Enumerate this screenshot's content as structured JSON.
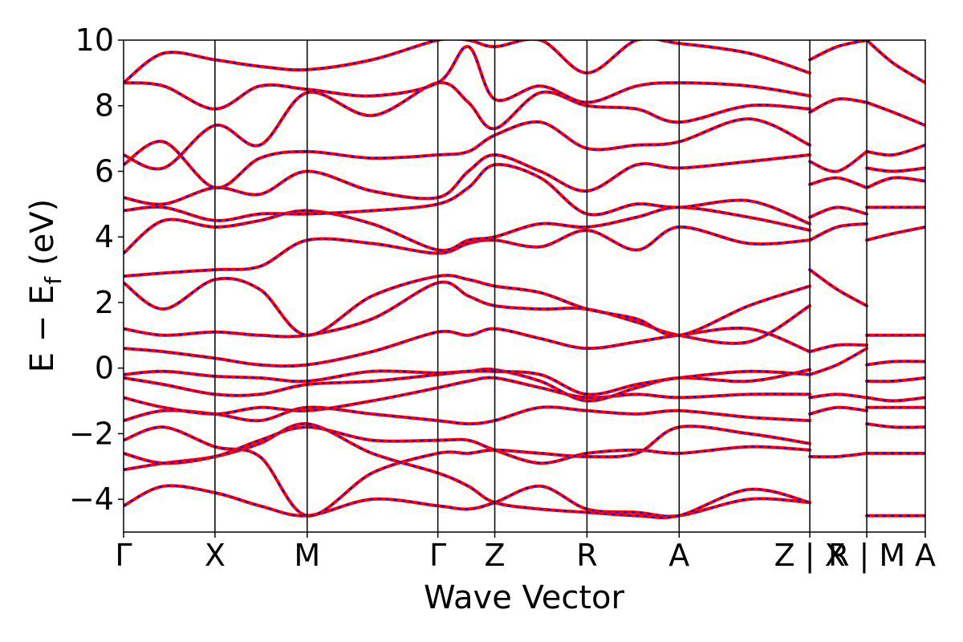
{
  "chart_data": {
    "type": "line",
    "xlabel": "Wave Vector",
    "ylabel": "E − E",
    "ylabel_sub": "f",
    "ylabel_unit": "(eV)",
    "ylim": [
      -5,
      10
    ],
    "yticks": [
      -4,
      -2,
      0,
      2,
      4,
      6,
      8,
      10
    ],
    "ytick_labels": [
      "−4",
      "−2",
      "0",
      "2",
      "4",
      "6",
      "8",
      "10"
    ],
    "x_range": [
      0,
      1
    ],
    "kpoints": [
      {
        "label": "Γ",
        "x": 0.0
      },
      {
        "label": "X",
        "x": 0.114
      },
      {
        "label": "M",
        "x": 0.229
      },
      {
        "label": "Γ",
        "x": 0.392
      },
      {
        "label": "Z",
        "x": 0.463
      },
      {
        "label": "R",
        "x": 0.578
      },
      {
        "label": "A",
        "x": 0.693
      },
      {
        "label": "Z | X",
        "x": 0.856
      },
      {
        "label": "R | M",
        "x": 0.927
      },
      {
        "label": "A",
        "x": 1.0
      }
    ],
    "series": [
      {
        "color": "#ff0000",
        "style": "solid"
      },
      {
        "color": "#0000ff",
        "style": "dashed"
      }
    ],
    "bands": [
      {
        "x": [
          0.0,
          0.05,
          0.114,
          0.17,
          0.229,
          0.31,
          0.392,
          0.43,
          0.463,
          0.52,
          0.578,
          0.64,
          0.693,
          0.78,
          0.856
        ],
        "y": [
          -4.2,
          -3.6,
          -3.8,
          -4.2,
          -4.5,
          -4.0,
          -4.2,
          -4.3,
          -4.1,
          -3.6,
          -4.3,
          -4.4,
          -4.5,
          -4.0,
          -4.1
        ]
      },
      {
        "x": [
          0.0,
          0.05,
          0.114,
          0.17,
          0.229,
          0.31,
          0.392,
          0.43,
          0.463,
          0.52,
          0.578,
          0.64,
          0.693,
          0.78,
          0.856
        ],
        "y": [
          -3.1,
          -2.9,
          -2.7,
          -2.3,
          -1.7,
          -2.6,
          -3.2,
          -3.6,
          -4.1,
          -4.3,
          -4.4,
          -4.5,
          -4.5,
          -3.7,
          -4.1
        ]
      },
      {
        "x": [
          0.0,
          0.05,
          0.114,
          0.17,
          0.229,
          0.31,
          0.392,
          0.43,
          0.463,
          0.52,
          0.578,
          0.64,
          0.693,
          0.78,
          0.856
        ],
        "y": [
          -2.6,
          -2.9,
          -2.7,
          -2.2,
          -1.8,
          -2.2,
          -2.2,
          -2.2,
          -2.5,
          -2.9,
          -2.6,
          -2.5,
          -2.6,
          -2.4,
          -2.5
        ]
      },
      {
        "x": [
          0.0,
          0.05,
          0.114,
          0.17,
          0.229,
          0.31,
          0.392,
          0.43,
          0.463,
          0.52,
          0.578,
          0.64,
          0.693,
          0.78,
          0.856
        ],
        "y": [
          -2.2,
          -1.8,
          -2.4,
          -2.7,
          -4.5,
          -3.2,
          -2.6,
          -2.6,
          -2.5,
          -2.6,
          -2.7,
          -2.6,
          -1.8,
          -2.0,
          -2.3
        ]
      },
      {
        "x": [
          0.0,
          0.05,
          0.114,
          0.17,
          0.229,
          0.31,
          0.392,
          0.43,
          0.463,
          0.52,
          0.578,
          0.64,
          0.693,
          0.78,
          0.856
        ],
        "y": [
          -1.6,
          -1.3,
          -1.4,
          -1.6,
          -1.2,
          -1.4,
          -1.6,
          -1.7,
          -1.6,
          -1.2,
          -1.3,
          -1.4,
          -1.3,
          -1.5,
          -1.6
        ]
      },
      {
        "x": [
          0.0,
          0.05,
          0.114,
          0.17,
          0.229,
          0.31,
          0.392,
          0.43,
          0.463,
          0.52,
          0.578,
          0.64,
          0.693,
          0.78,
          0.856
        ],
        "y": [
          -0.9,
          -1.2,
          -1.4,
          -1.2,
          -1.3,
          -1.0,
          -0.6,
          -0.4,
          -0.3,
          -0.6,
          -0.9,
          -0.8,
          -0.9,
          -0.8,
          -0.8
        ]
      },
      {
        "x": [
          0.0,
          0.05,
          0.114,
          0.17,
          0.229,
          0.31,
          0.392,
          0.43,
          0.463,
          0.52,
          0.578,
          0.64,
          0.693,
          0.78,
          0.856
        ],
        "y": [
          -0.3,
          -0.5,
          -0.8,
          -0.8,
          -0.5,
          -0.4,
          -0.2,
          -0.1,
          -0.05,
          -0.4,
          -1.0,
          -0.6,
          -0.3,
          -0.4,
          -0.05
        ]
      },
      {
        "x": [
          0.0,
          0.05,
          0.114,
          0.17,
          0.229,
          0.31,
          0.392,
          0.43,
          0.463,
          0.52,
          0.578,
          0.64,
          0.693,
          0.78,
          0.856
        ],
        "y": [
          -0.2,
          -0.1,
          -0.25,
          -0.3,
          -0.4,
          -0.1,
          -0.15,
          -0.1,
          -0.1,
          -0.2,
          -0.8,
          -0.5,
          -0.3,
          -0.1,
          -0.2
        ]
      },
      {
        "x": [
          0.0,
          0.05,
          0.114,
          0.17,
          0.229,
          0.31,
          0.392,
          0.43,
          0.463,
          0.52,
          0.578,
          0.64,
          0.693,
          0.78,
          0.856
        ],
        "y": [
          0.6,
          0.5,
          0.3,
          0.1,
          0.1,
          0.5,
          1.1,
          1.0,
          1.2,
          0.9,
          0.6,
          0.8,
          1.0,
          1.2,
          0.5
        ]
      },
      {
        "x": [
          0.0,
          0.05,
          0.114,
          0.17,
          0.229,
          0.31,
          0.392,
          0.43,
          0.463,
          0.52,
          0.578,
          0.64,
          0.693,
          0.78,
          0.856
        ],
        "y": [
          1.2,
          1.0,
          1.1,
          1.0,
          1.0,
          1.5,
          2.6,
          2.2,
          1.9,
          1.8,
          1.8,
          1.4,
          1.0,
          0.8,
          1.9
        ]
      },
      {
        "x": [
          0.0,
          0.05,
          0.114,
          0.17,
          0.229,
          0.31,
          0.392,
          0.43,
          0.463,
          0.52,
          0.578,
          0.64,
          0.693,
          0.78,
          0.856
        ],
        "y": [
          2.6,
          1.8,
          2.7,
          2.4,
          1.0,
          2.2,
          2.8,
          2.7,
          2.5,
          2.3,
          1.8,
          1.5,
          1.0,
          1.9,
          2.5
        ]
      },
      {
        "x": [
          0.0,
          0.05,
          0.114,
          0.17,
          0.229,
          0.31,
          0.392,
          0.43,
          0.463,
          0.52,
          0.578,
          0.64,
          0.693,
          0.78,
          0.856
        ],
        "y": [
          2.8,
          2.9,
          3.0,
          3.1,
          3.9,
          3.8,
          3.5,
          3.8,
          3.9,
          3.7,
          4.2,
          3.6,
          4.3,
          3.8,
          3.9
        ]
      },
      {
        "x": [
          0.0,
          0.05,
          0.114,
          0.17,
          0.229,
          0.31,
          0.392,
          0.43,
          0.463,
          0.52,
          0.578,
          0.64,
          0.693,
          0.78,
          0.856
        ],
        "y": [
          3.5,
          4.5,
          4.3,
          4.5,
          4.8,
          4.4,
          3.6,
          3.9,
          4.0,
          4.4,
          4.3,
          4.6,
          4.9,
          4.6,
          4.2
        ]
      },
      {
        "x": [
          0.0,
          0.05,
          0.114,
          0.17,
          0.229,
          0.31,
          0.392,
          0.43,
          0.463,
          0.52,
          0.578,
          0.64,
          0.693,
          0.78,
          0.856
        ],
        "y": [
          4.8,
          4.9,
          4.5,
          4.7,
          4.7,
          4.8,
          5.0,
          5.5,
          6.2,
          5.8,
          4.7,
          5.0,
          4.9,
          5.1,
          4.4
        ]
      },
      {
        "x": [
          0.0,
          0.05,
          0.114,
          0.17,
          0.229,
          0.31,
          0.392,
          0.43,
          0.463,
          0.52,
          0.578,
          0.64,
          0.693,
          0.78,
          0.856
        ],
        "y": [
          5.2,
          5.0,
          5.5,
          5.3,
          6.0,
          5.4,
          5.2,
          6.0,
          6.5,
          6.0,
          5.4,
          6.2,
          6.1,
          6.3,
          6.5
        ]
      },
      {
        "x": [
          0.0,
          0.05,
          0.114,
          0.17,
          0.229,
          0.31,
          0.392,
          0.43,
          0.463,
          0.52,
          0.578,
          0.64,
          0.693,
          0.78,
          0.856
        ],
        "y": [
          6.2,
          6.9,
          5.5,
          6.4,
          6.6,
          6.4,
          6.5,
          6.6,
          7.1,
          7.5,
          6.7,
          6.8,
          6.9,
          7.6,
          6.8
        ]
      },
      {
        "x": [
          0.0,
          0.05,
          0.114,
          0.17,
          0.229,
          0.31,
          0.392,
          0.43,
          0.463,
          0.52,
          0.578,
          0.64,
          0.693,
          0.78,
          0.856
        ],
        "y": [
          6.5,
          6.1,
          7.4,
          6.8,
          8.4,
          7.7,
          8.7,
          8.1,
          7.3,
          8.4,
          8.0,
          7.9,
          7.5,
          8.0,
          7.9
        ]
      },
      {
        "x": [
          0.0,
          0.05,
          0.114,
          0.17,
          0.229,
          0.31,
          0.392,
          0.43,
          0.463,
          0.52,
          0.578,
          0.64,
          0.693,
          0.78,
          0.856
        ],
        "y": [
          8.7,
          8.6,
          7.9,
          8.6,
          8.5,
          8.3,
          8.7,
          9.8,
          8.2,
          8.6,
          8.1,
          8.6,
          8.7,
          8.6,
          8.3
        ]
      },
      {
        "x": [
          0.0,
          0.05,
          0.114,
          0.17,
          0.229,
          0.31,
          0.392,
          0.43,
          0.463,
          0.52,
          0.578,
          0.64,
          0.693,
          0.78,
          0.856
        ],
        "y": [
          8.7,
          9.6,
          9.4,
          9.2,
          9.1,
          9.4,
          10.0,
          10.0,
          9.8,
          10.0,
          9.0,
          10.0,
          9.9,
          9.6,
          9.0
        ]
      },
      {
        "x": [
          0.856,
          0.89,
          0.927
        ],
        "y": [
          -2.7,
          -2.7,
          -2.6
        ]
      },
      {
        "x": [
          0.856,
          0.89,
          0.927
        ],
        "y": [
          -1.4,
          -1.2,
          -1.3
        ]
      },
      {
        "x": [
          0.856,
          0.89,
          0.927
        ],
        "y": [
          -0.9,
          -0.8,
          -0.9
        ]
      },
      {
        "x": [
          0.856,
          0.89,
          0.927
        ],
        "y": [
          -0.2,
          0.1,
          0.6
        ]
      },
      {
        "x": [
          0.856,
          0.89,
          0.927
        ],
        "y": [
          0.5,
          0.7,
          0.7
        ]
      },
      {
        "x": [
          0.856,
          0.89,
          0.927
        ],
        "y": [
          3.0,
          2.4,
          1.9
        ]
      },
      {
        "x": [
          0.856,
          0.89,
          0.927
        ],
        "y": [
          3.9,
          4.3,
          4.4
        ]
      },
      {
        "x": [
          0.856,
          0.89,
          0.927
        ],
        "y": [
          4.6,
          4.9,
          4.7
        ]
      },
      {
        "x": [
          0.856,
          0.89,
          0.927
        ],
        "y": [
          5.6,
          5.8,
          5.5
        ]
      },
      {
        "x": [
          0.856,
          0.89,
          0.927
        ],
        "y": [
          6.3,
          6.0,
          6.6
        ]
      },
      {
        "x": [
          0.856,
          0.89,
          0.927
        ],
        "y": [
          7.8,
          8.2,
          8.1
        ]
      },
      {
        "x": [
          0.856,
          0.89,
          0.927
        ],
        "y": [
          9.4,
          9.8,
          10.0
        ]
      },
      {
        "x": [
          0.927,
          0.96,
          1.0
        ],
        "y": [
          -4.5,
          -4.5,
          -4.5
        ]
      },
      {
        "x": [
          0.927,
          0.96,
          1.0
        ],
        "y": [
          -2.6,
          -2.6,
          -2.6
        ]
      },
      {
        "x": [
          0.927,
          0.96,
          1.0
        ],
        "y": [
          -1.7,
          -1.8,
          -1.8
        ]
      },
      {
        "x": [
          0.927,
          0.96,
          1.0
        ],
        "y": [
          -1.2,
          -1.2,
          -1.2
        ]
      },
      {
        "x": [
          0.927,
          0.96,
          1.0
        ],
        "y": [
          -0.9,
          -1.0,
          -0.9
        ]
      },
      {
        "x": [
          0.927,
          0.96,
          1.0
        ],
        "y": [
          -0.4,
          -0.4,
          -0.3
        ]
      },
      {
        "x": [
          0.927,
          0.96,
          1.0
        ],
        "y": [
          0.1,
          0.2,
          0.2
        ]
      },
      {
        "x": [
          0.927,
          0.96,
          1.0
        ],
        "y": [
          1.0,
          1.0,
          1.0
        ]
      },
      {
        "x": [
          0.927,
          0.96,
          1.0
        ],
        "y": [
          3.9,
          4.1,
          4.3
        ]
      },
      {
        "x": [
          0.927,
          0.96,
          1.0
        ],
        "y": [
          4.9,
          4.9,
          4.9
        ]
      },
      {
        "x": [
          0.927,
          0.96,
          1.0
        ],
        "y": [
          5.5,
          5.8,
          5.7
        ]
      },
      {
        "x": [
          0.927,
          0.96,
          1.0
        ],
        "y": [
          6.1,
          6.0,
          6.1
        ]
      },
      {
        "x": [
          0.927,
          0.96,
          1.0
        ],
        "y": [
          6.6,
          6.5,
          6.8
        ]
      },
      {
        "x": [
          0.927,
          0.96,
          1.0
        ],
        "y": [
          8.1,
          7.8,
          7.4
        ]
      },
      {
        "x": [
          0.927,
          0.96,
          1.0
        ],
        "y": [
          10.0,
          9.3,
          8.7
        ]
      }
    ]
  }
}
